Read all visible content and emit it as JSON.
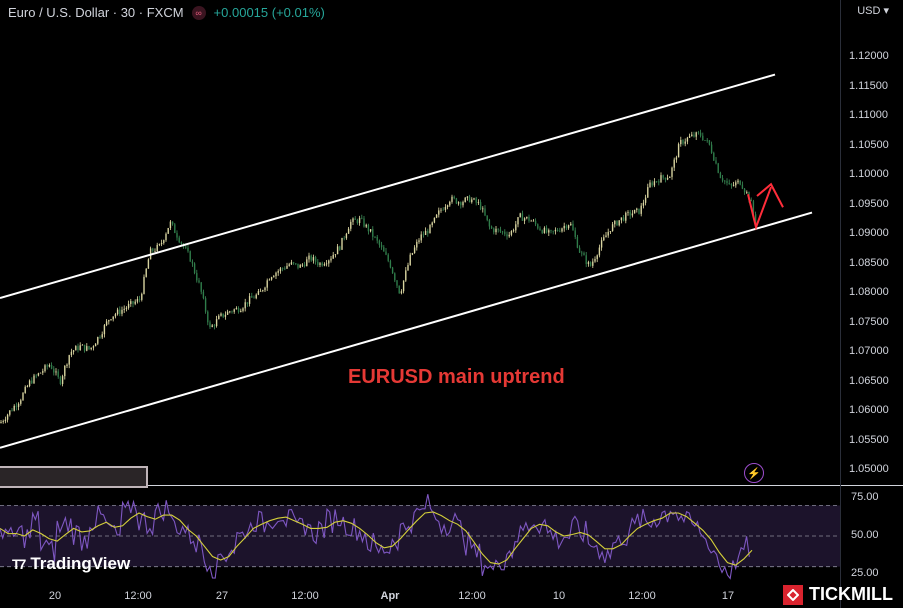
{
  "header": {
    "symbol": "Euro / U.S. Dollar · 30 · FXCM",
    "change": "+0.00015 (+0.01%)",
    "badge_icon": "infinity-icon"
  },
  "currency_selector": "USD",
  "annotation": "EURUSD main uptrend",
  "branding": {
    "tradingview": "TradingView",
    "tickmill": "TICKMILL"
  },
  "colors": {
    "up": "#26a69a",
    "channel": "#ffffff",
    "annotation": "#e53935",
    "rsi": "#7e57c2",
    "rsi_ma": "#d4d03a",
    "arrow": "#ff2d3a"
  },
  "chart_data": [
    {
      "type": "candlestick",
      "title": "",
      "y_axis": {
        "ylim": [
          1.0475,
          1.1255
        ],
        "ticks": [
          "1.12000",
          "1.11500",
          "1.11000",
          "1.10500",
          "1.10000",
          "1.09500",
          "1.09000",
          "1.08500",
          "1.08000",
          "1.07500",
          "1.07000",
          "1.06500",
          "1.06000",
          "1.05500",
          "1.05000"
        ]
      },
      "x_axis": {
        "ticks": [
          "20",
          "12:00",
          "27",
          "12:00",
          "Apr",
          "12:00",
          "10",
          "12:00",
          "17"
        ]
      },
      "approx_close_path": [
        [
          0,
          1.058
        ],
        [
          10,
          1.06
        ],
        [
          20,
          1.062
        ],
        [
          30,
          1.065
        ],
        [
          40,
          1.0665
        ],
        [
          50,
          1.068
        ],
        [
          60,
          1.065
        ],
        [
          70,
          1.07
        ],
        [
          80,
          1.071
        ],
        [
          90,
          1.0705
        ],
        [
          100,
          1.073
        ],
        [
          110,
          1.076
        ],
        [
          120,
          1.077
        ],
        [
          130,
          1.078
        ],
        [
          140,
          1.079
        ],
        [
          150,
          1.087
        ],
        [
          160,
          1.088
        ],
        [
          170,
          1.092
        ],
        [
          180,
          1.089
        ],
        [
          190,
          1.086
        ],
        [
          200,
          1.081
        ],
        [
          210,
          1.074
        ],
        [
          220,
          1.076
        ],
        [
          230,
          1.077
        ],
        [
          240,
          1.0775
        ],
        [
          250,
          1.079
        ],
        [
          260,
          1.08
        ],
        [
          270,
          1.083
        ],
        [
          280,
          1.084
        ],
        [
          290,
          1.085
        ],
        [
          300,
          1.0845
        ],
        [
          310,
          1.086
        ],
        [
          320,
          1.085
        ],
        [
          330,
          1.086
        ],
        [
          340,
          1.088
        ],
        [
          350,
          1.092
        ],
        [
          360,
          1.0925
        ],
        [
          370,
          1.0905
        ],
        [
          380,
          1.088
        ],
        [
          390,
          1.085
        ],
        [
          400,
          1.08
        ],
        [
          410,
          1.086
        ],
        [
          420,
          1.0895
        ],
        [
          430,
          1.091
        ],
        [
          440,
          1.094
        ],
        [
          450,
          1.096
        ],
        [
          460,
          1.0955
        ],
        [
          470,
          1.096
        ],
        [
          480,
          1.095
        ],
        [
          490,
          1.091
        ],
        [
          500,
          1.0905
        ],
        [
          510,
          1.09
        ],
        [
          520,
          1.093
        ],
        [
          530,
          1.0925
        ],
        [
          540,
          1.091
        ],
        [
          550,
          1.09
        ],
        [
          560,
          1.091
        ],
        [
          570,
          1.092
        ],
        [
          580,
          1.087
        ],
        [
          590,
          1.0845
        ],
        [
          600,
          1.088
        ],
        [
          610,
          1.091
        ],
        [
          620,
          1.0925
        ],
        [
          630,
          1.0935
        ],
        [
          640,
          1.094
        ],
        [
          650,
          1.0985
        ],
        [
          660,
          1.0995
        ],
        [
          670,
          1.1
        ],
        [
          680,
          1.1055
        ],
        [
          690,
          1.1065
        ],
        [
          700,
          1.107
        ],
        [
          710,
          1.105
        ],
        [
          720,
          1.1
        ],
        [
          730,
          1.098
        ],
        [
          740,
          1.099
        ],
        [
          750,
          1.096
        ],
        [
          756,
          1.0915
        ]
      ],
      "channel_lines": [
        {
          "from": [
            0,
            1.0792
          ],
          "to": [
            775,
            1.1171
          ]
        },
        {
          "from": [
            0,
            1.0538
          ],
          "to": [
            812,
            1.0937
          ]
        }
      ],
      "annotation": "EURUSD main uptrend"
    },
    {
      "type": "line",
      "title": "",
      "y_axis": {
        "ylim": [
          20,
          82
        ],
        "ticks": [
          "75.00",
          "50.00",
          "25.00"
        ]
      },
      "series": [
        {
          "values": [
            55,
            48,
            52,
            50,
            60,
            45,
            40,
            55,
            58,
            52,
            48,
            60,
            62,
            55,
            50,
            65,
            70,
            60,
            58,
            65,
            68,
            58,
            55,
            50,
            45,
            35,
            30,
            38,
            42,
            50,
            55,
            60,
            58,
            62,
            65,
            60,
            55,
            58,
            52,
            55,
            60,
            62,
            58,
            55,
            52,
            45,
            40,
            42,
            48,
            55,
            60,
            65,
            70,
            62,
            58,
            60,
            55,
            45,
            38,
            32,
            28,
            35,
            40,
            50,
            55,
            60,
            58,
            52,
            48,
            50,
            55,
            52,
            45,
            42,
            38,
            45,
            50,
            55,
            60,
            58,
            62,
            65,
            68,
            62,
            58,
            55,
            48,
            40,
            30,
            28,
            35,
            42,
            45
          ]
        }
      ],
      "levels": [
        70,
        50,
        30
      ]
    }
  ]
}
